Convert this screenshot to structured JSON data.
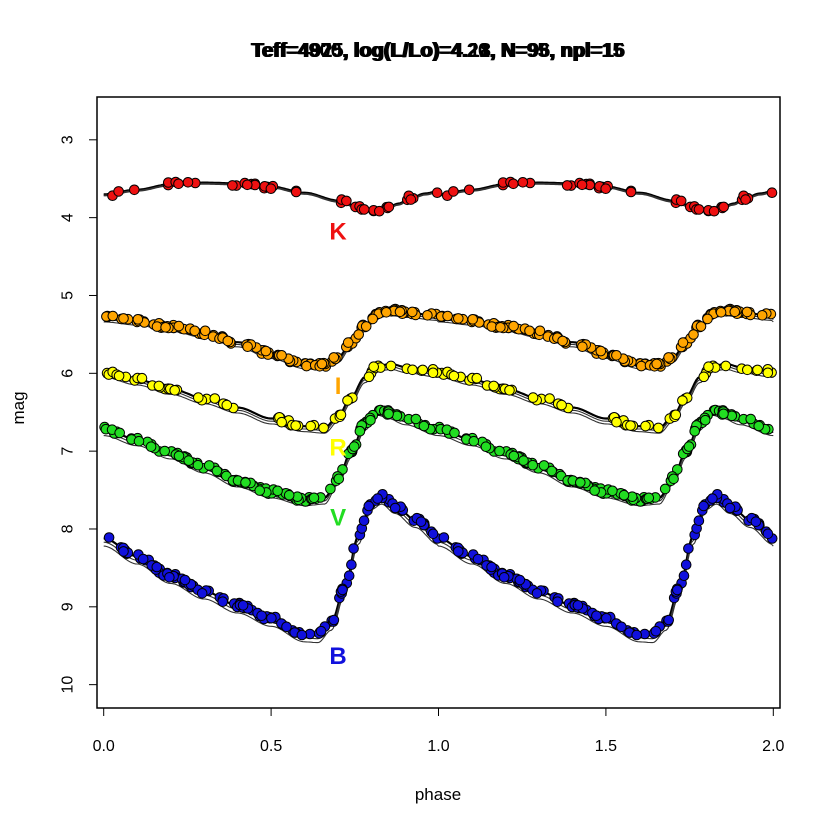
{
  "chart_data": {
    "type": "scatter",
    "title_layers": [
      "Teff=4875, log(L/Lo)=4.21, N=93, npl=15",
      "Teff=4925, log(L/Lo)=4.18, N=96, npl=16",
      "Teff=4900, log(L/Lo)=4.20, N=95, npl=15"
    ],
    "xlabel": "phase",
    "ylabel": "mag",
    "xlim": [
      -0.02,
      2.02
    ],
    "ylim": [
      10.3,
      2.45
    ],
    "y_reversed": true,
    "grid": false,
    "x_ticks": [
      {
        "value": 0.0,
        "label": "0.0"
      },
      {
        "value": 0.5,
        "label": "0.5"
      },
      {
        "value": 1.0,
        "label": "1.0"
      },
      {
        "value": 1.5,
        "label": "1.5"
      },
      {
        "value": 2.0,
        "label": "2.0"
      }
    ],
    "y_ticks": [
      {
        "value": 3,
        "label": "3"
      },
      {
        "value": 4,
        "label": "4"
      },
      {
        "value": 5,
        "label": "5"
      },
      {
        "value": 6,
        "label": "6"
      },
      {
        "value": 7,
        "label": "7"
      },
      {
        "value": 8,
        "label": "8"
      },
      {
        "value": 9,
        "label": "9"
      },
      {
        "value": 10,
        "label": "10"
      }
    ],
    "series": [
      {
        "name": "K",
        "color": "#ee1111",
        "label_pos": [
          0.7,
          4.18
        ],
        "model_offset": 0.02,
        "curve": [
          [
            0.0,
            3.7
          ],
          [
            0.1,
            3.64
          ],
          [
            0.2,
            3.57
          ],
          [
            0.3,
            3.55
          ],
          [
            0.4,
            3.56
          ],
          [
            0.5,
            3.6
          ],
          [
            0.6,
            3.68
          ],
          [
            0.7,
            3.78
          ],
          [
            0.76,
            3.86
          ],
          [
            0.8,
            3.9
          ],
          [
            0.84,
            3.89
          ],
          [
            0.88,
            3.82
          ],
          [
            0.92,
            3.74
          ],
          [
            0.96,
            3.69
          ],
          [
            1.0,
            3.66
          ]
        ]
      },
      {
        "name": "I",
        "color": "#ffa500",
        "label_pos": [
          0.7,
          6.16
        ],
        "model_offset": 0.06,
        "curve": [
          [
            0.0,
            5.28
          ],
          [
            0.1,
            5.32
          ],
          [
            0.2,
            5.4
          ],
          [
            0.3,
            5.48
          ],
          [
            0.4,
            5.6
          ],
          [
            0.5,
            5.75
          ],
          [
            0.6,
            5.88
          ],
          [
            0.65,
            5.9
          ],
          [
            0.7,
            5.8
          ],
          [
            0.74,
            5.6
          ],
          [
            0.78,
            5.38
          ],
          [
            0.82,
            5.22
          ],
          [
            0.86,
            5.2
          ],
          [
            0.9,
            5.22
          ],
          [
            1.0,
            5.26
          ]
        ]
      },
      {
        "name": "R",
        "color": "#ffff00",
        "label_pos": [
          0.7,
          6.95
        ],
        "model_offset": 0.07,
        "curve": [
          [
            0.0,
            5.98
          ],
          [
            0.1,
            6.08
          ],
          [
            0.2,
            6.2
          ],
          [
            0.3,
            6.32
          ],
          [
            0.4,
            6.44
          ],
          [
            0.5,
            6.58
          ],
          [
            0.6,
            6.68
          ],
          [
            0.66,
            6.7
          ],
          [
            0.7,
            6.55
          ],
          [
            0.74,
            6.3
          ],
          [
            0.78,
            6.05
          ],
          [
            0.82,
            5.9
          ],
          [
            0.86,
            5.88
          ],
          [
            0.9,
            5.92
          ],
          [
            1.0,
            5.98
          ]
        ]
      },
      {
        "name": "V",
        "color": "#22dd22",
        "label_pos": [
          0.7,
          7.85
        ],
        "model_offset": 0.08,
        "curve": [
          [
            0.0,
            6.72
          ],
          [
            0.1,
            6.85
          ],
          [
            0.2,
            7.02
          ],
          [
            0.3,
            7.2
          ],
          [
            0.4,
            7.38
          ],
          [
            0.5,
            7.52
          ],
          [
            0.6,
            7.62
          ],
          [
            0.66,
            7.6
          ],
          [
            0.7,
            7.35
          ],
          [
            0.74,
            7.0
          ],
          [
            0.78,
            6.65
          ],
          [
            0.82,
            6.46
          ],
          [
            0.85,
            6.5
          ],
          [
            0.9,
            6.58
          ],
          [
            1.0,
            6.72
          ]
        ]
      },
      {
        "name": "B",
        "color": "#1111dd",
        "label_pos": [
          0.7,
          9.63
        ],
        "model_offset": 0.1,
        "curve": [
          [
            0.0,
            8.12
          ],
          [
            0.1,
            8.35
          ],
          [
            0.2,
            8.6
          ],
          [
            0.3,
            8.8
          ],
          [
            0.4,
            8.98
          ],
          [
            0.5,
            9.15
          ],
          [
            0.6,
            9.35
          ],
          [
            0.64,
            9.36
          ],
          [
            0.68,
            9.2
          ],
          [
            0.72,
            8.75
          ],
          [
            0.76,
            8.1
          ],
          [
            0.8,
            7.65
          ],
          [
            0.83,
            7.58
          ],
          [
            0.87,
            7.7
          ],
          [
            0.93,
            7.88
          ],
          [
            1.0,
            8.1
          ]
        ]
      }
    ]
  }
}
